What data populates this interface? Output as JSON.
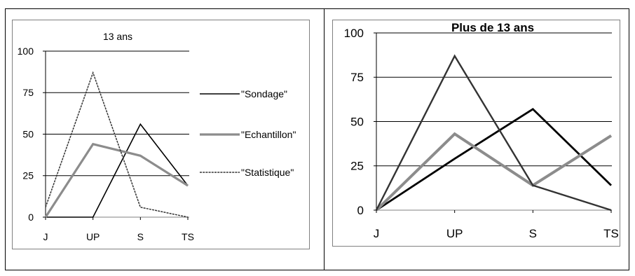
{
  "chart_data": [
    {
      "type": "line",
      "title": "13 ans",
      "categories": [
        "J",
        "UP",
        "S",
        "TS"
      ],
      "yticks": [
        "0",
        "25",
        "50",
        "75",
        "100"
      ],
      "ylim": [
        0,
        100
      ],
      "grid": true,
      "legend_position": "right",
      "series": [
        {
          "name": "\"Sondage\"",
          "values": [
            0,
            0,
            56,
            19
          ],
          "color": "#000000",
          "style": "solid"
        },
        {
          "name": "\"Echantillon\"",
          "values": [
            0,
            44,
            37,
            19
          ],
          "color": "#8c8c8c",
          "style": "thick"
        },
        {
          "name": "\"Statistique\"",
          "values": [
            6,
            87,
            6,
            0
          ],
          "color": "#333333",
          "style": "dotted"
        }
      ]
    },
    {
      "type": "line",
      "title": "Plus de 13 ans",
      "categories": [
        "J",
        "UP",
        "S",
        "TS"
      ],
      "yticks": [
        "0",
        "25",
        "50",
        "75",
        "100"
      ],
      "ylim": [
        0,
        100
      ],
      "grid": true,
      "series": [
        {
          "values": [
            0,
            29,
            57,
            14
          ],
          "color": "#000000",
          "style": "solid"
        },
        {
          "values": [
            0,
            43,
            14,
            42
          ],
          "color": "#8c8c8c",
          "style": "thick"
        },
        {
          "values": [
            0,
            87,
            14,
            0
          ],
          "color": "#333333",
          "style": "dotted"
        }
      ]
    }
  ]
}
